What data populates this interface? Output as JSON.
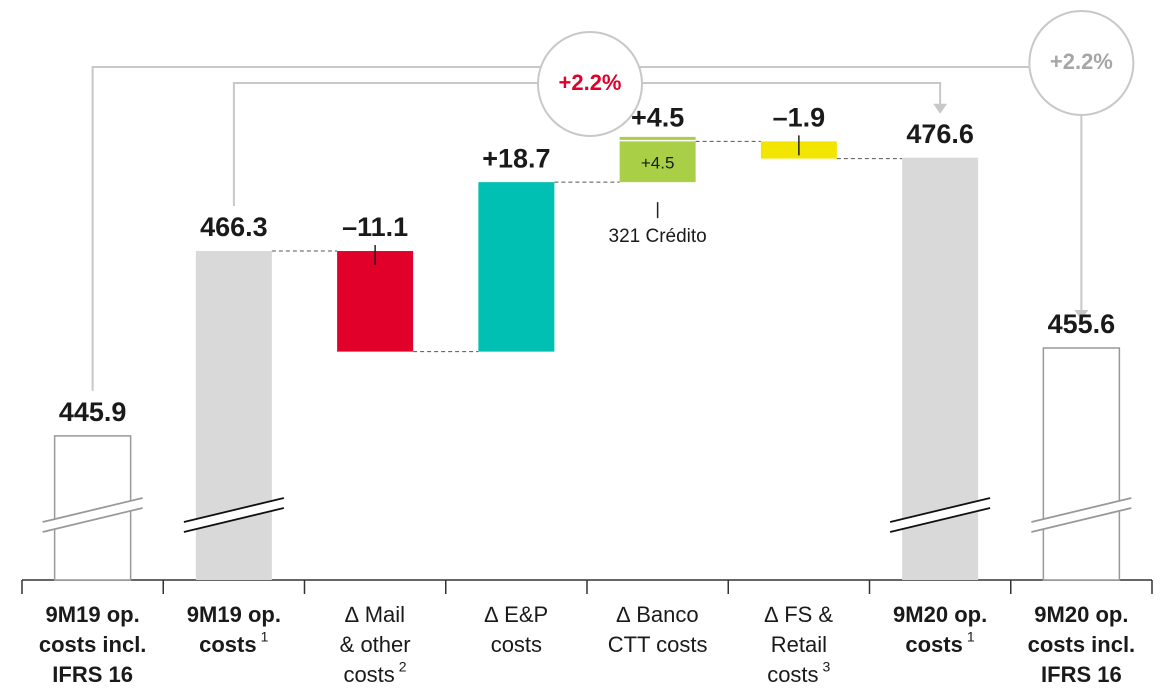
{
  "chart_data": {
    "type": "waterfall",
    "categories": [
      [
        "9M19 op.",
        "costs incl.",
        "IFRS 16"
      ],
      [
        "9M19 op.",
        "costs"
      ],
      [
        "∆ Mail",
        "& other",
        "costs"
      ],
      [
        "∆ E&P",
        "costs"
      ],
      [
        "∆ Banco",
        "CTT costs"
      ],
      [
        "∆ FS &",
        "Retail",
        "costs"
      ],
      [
        "9M20 op.",
        "costs"
      ],
      [
        "9M20 op.",
        "costs incl.",
        "IFRS 16"
      ]
    ],
    "notes": [
      null,
      "1",
      "2",
      null,
      null,
      "3",
      "1",
      null
    ],
    "measure": [
      "absolute",
      "absolute",
      "relative",
      "relative",
      "relative",
      "relative",
      "absolute",
      "absolute"
    ],
    "values": [
      445.9,
      466.3,
      -11.1,
      18.7,
      4.5,
      -1.9,
      476.6,
      455.6
    ],
    "value_labels": [
      "445.9",
      "466.3",
      "–11.1",
      "+18.7",
      "+4.5",
      "–1.9",
      "476.6",
      "455.6"
    ],
    "colors": [
      "#ffffff",
      "#d9d9d9",
      "#e0002a",
      "#00bfb3",
      "#a8cf45",
      "#f2e500",
      "#d9d9d9",
      "#ffffff"
    ],
    "ylim": [
      430,
      494
    ],
    "inner_label": "+4.5",
    "annotation": "321 Crédito",
    "growth": [
      {
        "label": "+2.2%",
        "color": "#e0002a"
      },
      {
        "label": "+2.2%",
        "color": "#a6a6a6"
      }
    ]
  }
}
